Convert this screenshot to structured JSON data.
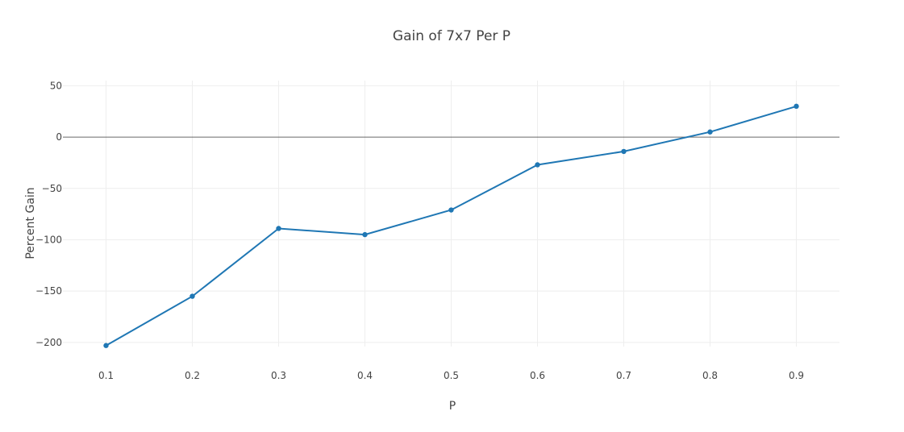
{
  "chart_data": {
    "type": "line",
    "title": "Gain of 7x7 Per P",
    "xlabel": "P",
    "ylabel": "Percent Gain",
    "x": [
      0.1,
      0.2,
      0.3,
      0.4,
      0.5,
      0.6,
      0.7,
      0.8,
      0.9
    ],
    "series": [
      {
        "values": [
          -203,
          -155,
          -89,
          -95,
          -71,
          -27,
          -14,
          5,
          30
        ]
      }
    ],
    "xlim": [
      0.05,
      0.95
    ],
    "ylim": [
      -215,
      55
    ],
    "x_ticks": [
      "0.1",
      "0.2",
      "0.3",
      "0.4",
      "0.5",
      "0.6",
      "0.7",
      "0.8",
      "0.9"
    ],
    "y_ticks": [
      "50",
      "0",
      "−50",
      "−100",
      "−150",
      "−200"
    ],
    "y_tick_values": [
      50,
      0,
      -50,
      -100,
      -150,
      -200
    ],
    "grid": true,
    "legend": "none",
    "colors": {
      "line": "#1f77b4",
      "grid": "#eeeeee",
      "zeroline": "#444444",
      "text": "#444444"
    }
  }
}
